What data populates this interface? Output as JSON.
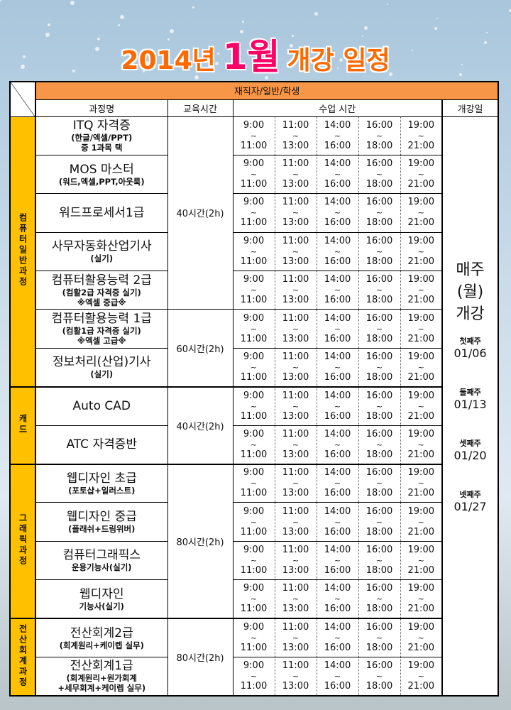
{
  "title": {
    "year": "2014년",
    "month": "1월",
    "rest": "개강 일정"
  },
  "colors": {
    "title_orange": "#ff6a00",
    "title_pink": "#ff0066",
    "header_orange": "#f79646",
    "category_yellow": "#ffc000"
  },
  "table": {
    "audience": "재직자/일반/학생",
    "headers": {
      "course": "과정명",
      "hours": "교육시간",
      "times": "수업 시간",
      "start": "개강일"
    },
    "time_slots": [
      [
        "9:00",
        "~",
        "11:00"
      ],
      [
        "11:00",
        "~",
        "13:00"
      ],
      [
        "14:00",
        "~",
        "16:00"
      ],
      [
        "16:00",
        "~",
        "18:00"
      ],
      [
        "19:00",
        "~",
        "21:00"
      ]
    ],
    "groups": [
      {
        "label": "컴퓨터일반과정",
        "rows": [
          {
            "name": "ITQ 자격증",
            "sub": [
              "(한글/엑셀/PPT)",
              "중 1과목 택"
            ]
          },
          {
            "name": "MOS 마스터",
            "sub": [
              "(워드,엑셀,PPT,아웃룩)"
            ]
          },
          {
            "name": "워드프로세서1급",
            "sub": []
          },
          {
            "name": "사무자동화산업기사",
            "sub": [
              "(실기)"
            ]
          },
          {
            "name": "컴퓨터활용능력 2급",
            "sub": [
              "(컴활2급 자격증 실기)",
              "※엑셀 중급※"
            ]
          },
          {
            "name": "컴퓨터활용능력 1급",
            "sub": [
              "(컴활1급 자격증 실기)",
              "※엑셀 고급※"
            ]
          },
          {
            "name": "정보처리(산업)기사",
            "sub": [
              "(실기)"
            ]
          }
        ]
      },
      {
        "label": "캐드",
        "rows": [
          {
            "name": "Auto CAD",
            "sub": []
          },
          {
            "name": "ATC 자격증반",
            "sub": []
          }
        ]
      },
      {
        "label": "그래픽과정",
        "rows": [
          {
            "name": "웹디자인 초급",
            "sub": [
              "(포토샵+일러스트)"
            ]
          },
          {
            "name": "웹디자인 중급",
            "sub": [
              "(플래쉬+드림위버)"
            ]
          },
          {
            "name": "컴퓨터그래픽스",
            "sub": [
              "운용기능사(실기)"
            ]
          },
          {
            "name": "웹디자인",
            "sub": [
              "기능사(실기)"
            ]
          }
        ]
      },
      {
        "label": "전산회계과정",
        "rows": [
          {
            "name": "전산회계2급",
            "sub": [
              "(회계원리+케이렙 실무)"
            ]
          },
          {
            "name": "전산회계1급",
            "sub": [
              "(회계원리+원가회계",
              "+세무회계+케이렙 실무)"
            ]
          }
        ]
      }
    ],
    "hours_blocks": [
      {
        "label": "40시간(2h)",
        "rows": 5
      },
      {
        "label": "60시간(2h)",
        "rows": 2
      },
      {
        "label": "40시간(2h)",
        "rows": 2
      },
      {
        "label": "80시간(2h)",
        "rows": 4
      },
      {
        "label": "80시간(2h)",
        "rows": 2
      }
    ],
    "start": {
      "lines": [
        "매주",
        "(월)",
        "개강"
      ],
      "weeks": [
        {
          "label": "첫째주",
          "date": "01/06"
        },
        {
          "label": "둘째주",
          "date": "01/13"
        },
        {
          "label": "셋째주",
          "date": "01/20"
        },
        {
          "label": "넷째주",
          "date": "01/27"
        }
      ]
    }
  }
}
